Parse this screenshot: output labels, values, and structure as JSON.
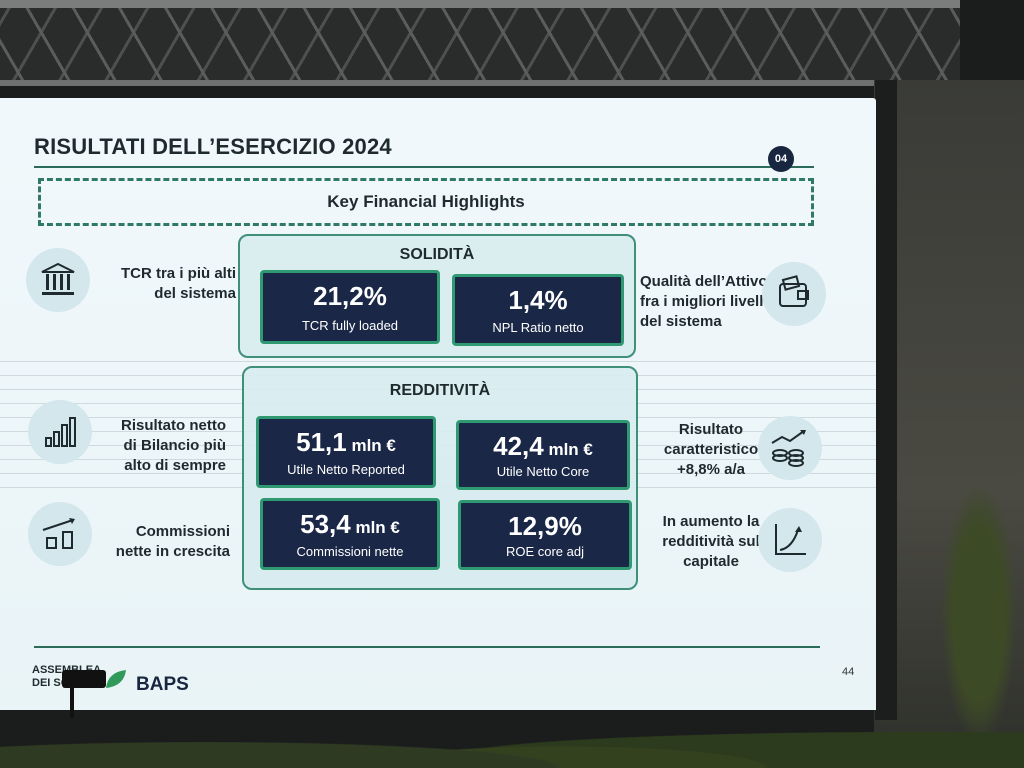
{
  "slide": {
    "title": "RISULTATI DELL’ESERCIZIO 2024",
    "page_badge": "04",
    "highlights_heading": "Key Financial Highlights",
    "solidita": {
      "heading": "SOLIDITÀ",
      "kpis": [
        {
          "value": "21,2%",
          "unit": "",
          "label": "TCR fully loaded"
        },
        {
          "value": "1,4%",
          "unit": "",
          "label": "NPL Ratio netto"
        }
      ]
    },
    "redditivita": {
      "heading": "REDDITIVITÀ",
      "kpis": [
        {
          "value": "51,1",
          "unit": " mln €",
          "label": "Utile Netto Reported"
        },
        {
          "value": "42,4",
          "unit": " mln €",
          "label": "Utile Netto Core"
        },
        {
          "value": "53,4",
          "unit": " mln €",
          "label": "Commissioni nette"
        },
        {
          "value": "12,9%",
          "unit": "",
          "label": "ROE core adj"
        }
      ]
    },
    "left_notes": [
      {
        "line1": "TCR tra i più alti",
        "line2": "del sistema",
        "line3": "",
        "icon": "bank-icon"
      },
      {
        "line1": "Risultato netto",
        "line2": "di Bilancio più",
        "line3": "alto di sempre",
        "icon": "bar-chart-icon"
      },
      {
        "line1": "Commissioni",
        "line2": "nette in crescita",
        "line3": "",
        "icon": "growth-boxes-icon"
      }
    ],
    "right_notes": [
      {
        "line1": "Qualità dell’Attivo",
        "line2": "fra i migliori livelli",
        "line3": "del sistema",
        "icon": "wallet-icon"
      },
      {
        "line1": "Risultato",
        "line2": "caratteristico",
        "line3": "+8,8% a/a",
        "icon": "coins-trend-icon"
      },
      {
        "line1": "In aumento la",
        "line2": "redditività sul",
        "line3": "capitale",
        "icon": "line-chart-icon"
      }
    ],
    "footer": {
      "assemblea_line1": "ASSEMBLEA",
      "assemblea_line2": "DEI SOCI",
      "brand": "BAPS",
      "page_number": "44"
    }
  },
  "colors": {
    "kpi_bg": "#1a2747",
    "kpi_border": "#2f9a72",
    "accent": "#2b6b5a"
  }
}
